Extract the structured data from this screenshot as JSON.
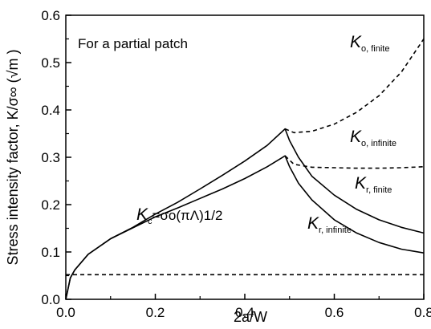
{
  "chart_data": {
    "type": "line",
    "xlabel": "2a/W",
    "ylabel": "Stress intensity factor, K/σ∞ (√m )",
    "xlim": [
      0.0,
      0.8
    ],
    "ylim": [
      0.0,
      0.6
    ],
    "xticks": [
      "0.0",
      "0.2",
      "0.4",
      "0.6",
      "0.8"
    ],
    "yticks": [
      "0.0",
      "0.1",
      "0.2",
      "0.3",
      "0.4",
      "0.5",
      "0.6"
    ],
    "annotation": "For a partial patch",
    "kc_label": {
      "base": "K",
      "sub": "c",
      "rest": "=σo(πΛ)1/2"
    },
    "series": [
      {
        "name": "Ko, finite",
        "label_base": "K",
        "label_sub": "o, finite",
        "style": "dashed",
        "x": [
          0.49,
          0.51,
          0.55,
          0.6,
          0.65,
          0.7,
          0.75,
          0.8
        ],
        "y": [
          0.36,
          0.352,
          0.355,
          0.37,
          0.395,
          0.43,
          0.48,
          0.55
        ]
      },
      {
        "name": "Ko, infinite",
        "label_base": "K",
        "label_sub": "o, infinite",
        "style": "dashed",
        "x": [
          0.49,
          0.51,
          0.55,
          0.6,
          0.65,
          0.7,
          0.75,
          0.8
        ],
        "y": [
          0.303,
          0.285,
          0.279,
          0.278,
          0.277,
          0.277,
          0.278,
          0.28
        ]
      },
      {
        "name": "Kr, finite",
        "label_base": "K",
        "label_sub": "r, finite",
        "style": "solid",
        "x": [
          0.0,
          0.01,
          0.02,
          0.05,
          0.1,
          0.15,
          0.2,
          0.25,
          0.3,
          0.35,
          0.4,
          0.45,
          0.49,
          0.5,
          0.52,
          0.55,
          0.6,
          0.65,
          0.7,
          0.75,
          0.8
        ],
        "y": [
          0.0,
          0.045,
          0.062,
          0.095,
          0.128,
          0.152,
          0.18,
          0.205,
          0.233,
          0.262,
          0.292,
          0.325,
          0.36,
          0.335,
          0.3,
          0.26,
          0.22,
          0.19,
          0.168,
          0.152,
          0.14
        ]
      },
      {
        "name": "Kr, infinite",
        "label_base": "K",
        "label_sub": "r, infinite",
        "style": "solid",
        "x": [
          0.0,
          0.01,
          0.02,
          0.05,
          0.1,
          0.15,
          0.2,
          0.25,
          0.3,
          0.35,
          0.4,
          0.45,
          0.49,
          0.5,
          0.52,
          0.55,
          0.6,
          0.65,
          0.7,
          0.75,
          0.8
        ],
        "y": [
          0.0,
          0.045,
          0.062,
          0.095,
          0.128,
          0.151,
          0.174,
          0.193,
          0.213,
          0.233,
          0.255,
          0.28,
          0.303,
          0.28,
          0.245,
          0.21,
          0.168,
          0.14,
          0.12,
          0.106,
          0.098
        ]
      },
      {
        "name": "Kc",
        "style": "dashed",
        "x": [
          0.0,
          0.8
        ],
        "y": [
          0.052,
          0.052
        ]
      }
    ]
  }
}
